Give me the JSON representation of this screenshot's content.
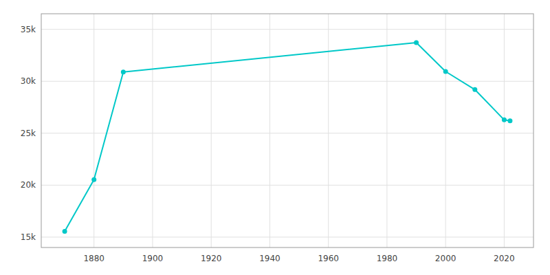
{
  "chart_data": {
    "type": "line",
    "x": [
      1870,
      1880,
      1890,
      1990,
      2000,
      2010,
      2020,
      2022
    ],
    "values": [
      15553,
      20541,
      30893,
      33724,
      30940,
      29200,
      26287,
      26200
    ],
    "color": "#00C8C8",
    "marker": "circle",
    "xlim": [
      1862,
      2030
    ],
    "ylim": [
      14000,
      36500
    ],
    "xticks": [
      1880,
      1900,
      1920,
      1940,
      1960,
      1980,
      2000,
      2020
    ],
    "yticks": [
      {
        "value": 15000,
        "label": "15k"
      },
      {
        "value": 20000,
        "label": "20k"
      },
      {
        "value": 25000,
        "label": "25k"
      },
      {
        "value": 30000,
        "label": "30k"
      },
      {
        "value": 35000,
        "label": "35k"
      }
    ],
    "grid": true
  }
}
